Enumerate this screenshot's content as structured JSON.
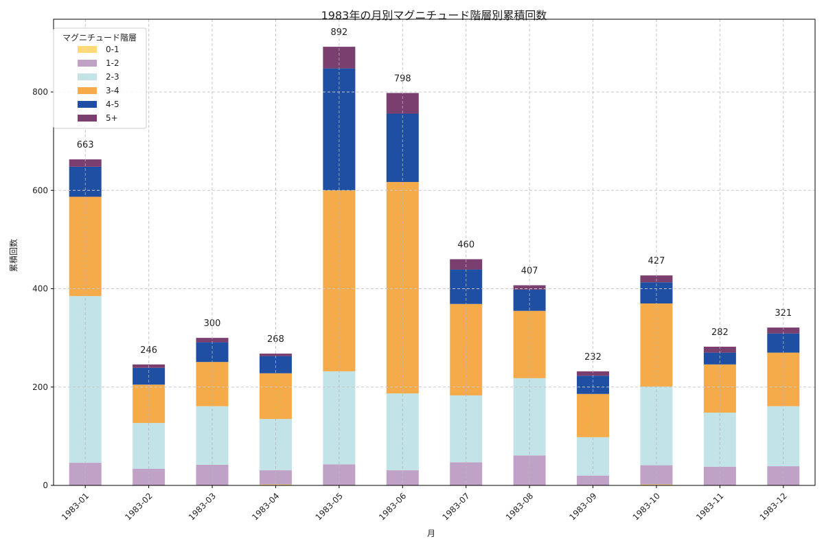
{
  "chart_data": {
    "type": "bar",
    "stacked": true,
    "title": "1983年の月別マグニチュード階層別累積回数",
    "xlabel": "月",
    "ylabel": "累積回数",
    "ylim": [
      0,
      948
    ],
    "yticks": [
      0,
      200,
      400,
      600,
      800
    ],
    "grid": true,
    "legend": {
      "title": "マグニチュード階層",
      "placement": "top-left"
    },
    "categories": [
      "1983-01",
      "1983-02",
      "1983-03",
      "1983-04",
      "1983-05",
      "1983-06",
      "1983-07",
      "1983-08",
      "1983-09",
      "1983-10",
      "1983-11",
      "1983-12"
    ],
    "totals": [
      663,
      246,
      300,
      268,
      892,
      798,
      460,
      407,
      232,
      427,
      282,
      321
    ],
    "series": [
      {
        "name": "0-1",
        "color": "#ffd97a",
        "values": [
          0,
          0,
          0,
          2,
          0,
          0,
          0,
          0,
          0,
          2,
          0,
          0
        ]
      },
      {
        "name": "1-2",
        "color": "#c0a2c7",
        "values": [
          46,
          34,
          42,
          29,
          43,
          31,
          47,
          61,
          20,
          39,
          38,
          39
        ]
      },
      {
        "name": "2-3",
        "color": "#c2e4e8",
        "values": [
          339,
          93,
          119,
          104,
          189,
          156,
          136,
          157,
          78,
          160,
          110,
          122
        ]
      },
      {
        "name": "3-4",
        "color": "#f5ab4a",
        "values": [
          202,
          78,
          90,
          93,
          368,
          430,
          186,
          137,
          88,
          169,
          98,
          109
        ]
      },
      {
        "name": "4-5",
        "color": "#1f4fa3",
        "values": [
          61,
          34,
          40,
          35,
          248,
          139,
          70,
          43,
          37,
          43,
          24,
          39
        ]
      },
      {
        "name": "5+",
        "color": "#7b3f6f",
        "values": [
          15,
          7,
          9,
          5,
          44,
          42,
          21,
          9,
          9,
          14,
          12,
          12
        ]
      }
    ]
  }
}
